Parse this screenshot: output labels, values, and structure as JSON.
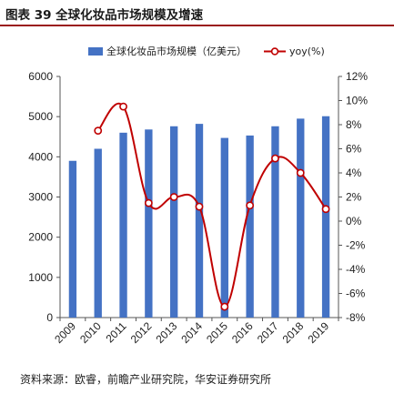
{
  "figure": {
    "title": "图表 39  全球化妆品市场规模及增速",
    "source": "资料来源：欧睿，前瞻产业研究院，华安证券研究所"
  },
  "chart_data": {
    "type": "bar",
    "categories": [
      "2009",
      "2010",
      "2011",
      "2012",
      "2013",
      "2014",
      "2015",
      "2016",
      "2017",
      "2018",
      "2019"
    ],
    "series": [
      {
        "name": "全球化妆品市场规模（亿美元）",
        "type": "bar",
        "axis": "left",
        "values": [
          3900,
          4200,
          4600,
          4680,
          4760,
          4820,
          4470,
          4530,
          4760,
          4950,
          5010
        ]
      },
      {
        "name": "yoy(%)",
        "type": "line",
        "axis": "right",
        "values": [
          null,
          7.5,
          9.5,
          1.5,
          2.0,
          1.2,
          -7.1,
          1.3,
          5.2,
          4.0,
          1.0
        ]
      }
    ],
    "y_left": {
      "min": 0,
      "max": 6000,
      "ticks": [
        0,
        1000,
        2000,
        3000,
        4000,
        5000,
        6000
      ]
    },
    "y_right": {
      "min": -8,
      "max": 12,
      "ticks": [
        -8,
        -6,
        -4,
        -2,
        0,
        2,
        4,
        6,
        8,
        10,
        12
      ],
      "tick_labels": [
        "-8%",
        "-6%",
        "-4%",
        "-2%",
        "0%",
        "2%",
        "4%",
        "6%",
        "8%",
        "10%",
        "12%"
      ]
    },
    "legend": "top",
    "grid": false,
    "colors": {
      "bar": "#4472c4",
      "line": "#c00000",
      "marker_fill": "#ffffff",
      "title_rule": "#9a1b1b"
    }
  }
}
